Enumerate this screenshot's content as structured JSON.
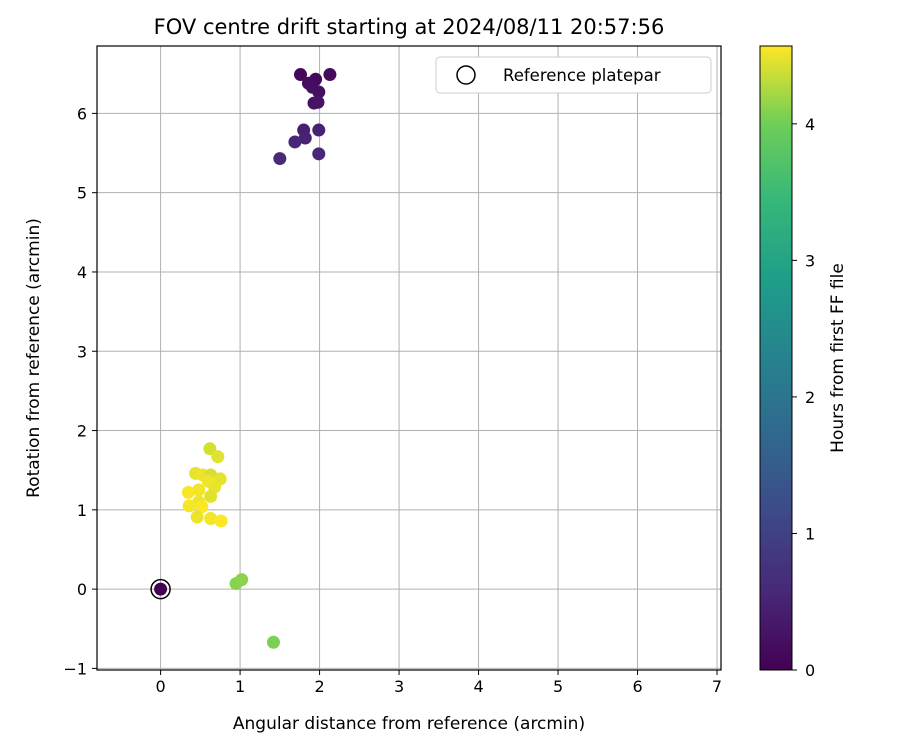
{
  "chart_data": {
    "type": "scatter",
    "title": "FOV centre drift starting at 2024/08/11 20:57:56",
    "xlabel": "Angular distance from reference (arcmin)",
    "ylabel": "Rotation from reference (arcmin)",
    "xlim": [
      -0.8,
      7.05
    ],
    "ylim": [
      -1.02,
      6.85
    ],
    "xticks": [
      "0",
      "1",
      "2",
      "3",
      "4",
      "5",
      "6",
      "7"
    ],
    "yticks": [
      "−1",
      "0",
      "1",
      "2",
      "3",
      "4",
      "5",
      "6"
    ],
    "grid": true,
    "legend": {
      "position": "top-right",
      "entries": [
        "Reference platepar"
      ]
    },
    "reference": {
      "x": 0,
      "y": 0
    },
    "colorbar": {
      "label": "Hours from first FF file",
      "colormap": "viridis",
      "range": [
        0,
        4.57
      ],
      "ticks": [
        "0",
        "1",
        "2",
        "3",
        "4"
      ]
    },
    "points": [
      {
        "x": 0.0,
        "y": 0.0,
        "hours": 0.0
      },
      {
        "x": 1.76,
        "y": 6.49,
        "hours": 0.1
      },
      {
        "x": 2.13,
        "y": 6.49,
        "hours": 0.15
      },
      {
        "x": 1.95,
        "y": 6.43,
        "hours": 0.12
      },
      {
        "x": 1.86,
        "y": 6.38,
        "hours": 0.18
      },
      {
        "x": 1.91,
        "y": 6.33,
        "hours": 0.2
      },
      {
        "x": 1.99,
        "y": 6.27,
        "hours": 0.22
      },
      {
        "x": 1.93,
        "y": 6.13,
        "hours": 0.25
      },
      {
        "x": 1.98,
        "y": 6.14,
        "hours": 0.27
      },
      {
        "x": 1.8,
        "y": 5.79,
        "hours": 0.45
      },
      {
        "x": 1.99,
        "y": 5.79,
        "hours": 0.48
      },
      {
        "x": 1.82,
        "y": 5.69,
        "hours": 0.5
      },
      {
        "x": 1.69,
        "y": 5.64,
        "hours": 0.55
      },
      {
        "x": 1.99,
        "y": 5.49,
        "hours": 0.58
      },
      {
        "x": 1.5,
        "y": 5.43,
        "hours": 0.62
      },
      {
        "x": 1.42,
        "y": -0.67,
        "hours": 4.05
      },
      {
        "x": 0.95,
        "y": 0.07,
        "hours": 4.1
      },
      {
        "x": 1.02,
        "y": 0.12,
        "hours": 4.12
      },
      {
        "x": 0.62,
        "y": 1.77,
        "hours": 4.4
      },
      {
        "x": 0.72,
        "y": 1.67,
        "hours": 4.45
      },
      {
        "x": 0.44,
        "y": 1.46,
        "hours": 4.48
      },
      {
        "x": 0.53,
        "y": 1.44,
        "hours": 4.5
      },
      {
        "x": 0.63,
        "y": 1.44,
        "hours": 4.42
      },
      {
        "x": 0.75,
        "y": 1.39,
        "hours": 4.47
      },
      {
        "x": 0.6,
        "y": 1.36,
        "hours": 4.52
      },
      {
        "x": 0.68,
        "y": 1.29,
        "hours": 4.49
      },
      {
        "x": 0.48,
        "y": 1.25,
        "hours": 4.53
      },
      {
        "x": 0.35,
        "y": 1.22,
        "hours": 4.55
      },
      {
        "x": 0.63,
        "y": 1.17,
        "hours": 4.46
      },
      {
        "x": 0.48,
        "y": 1.1,
        "hours": 4.51
      },
      {
        "x": 0.36,
        "y": 1.05,
        "hours": 4.54
      },
      {
        "x": 0.52,
        "y": 1.04,
        "hours": 4.56
      },
      {
        "x": 0.46,
        "y": 0.91,
        "hours": 4.5
      },
      {
        "x": 0.63,
        "y": 0.89,
        "hours": 4.53
      },
      {
        "x": 0.76,
        "y": 0.86,
        "hours": 4.57
      }
    ]
  }
}
